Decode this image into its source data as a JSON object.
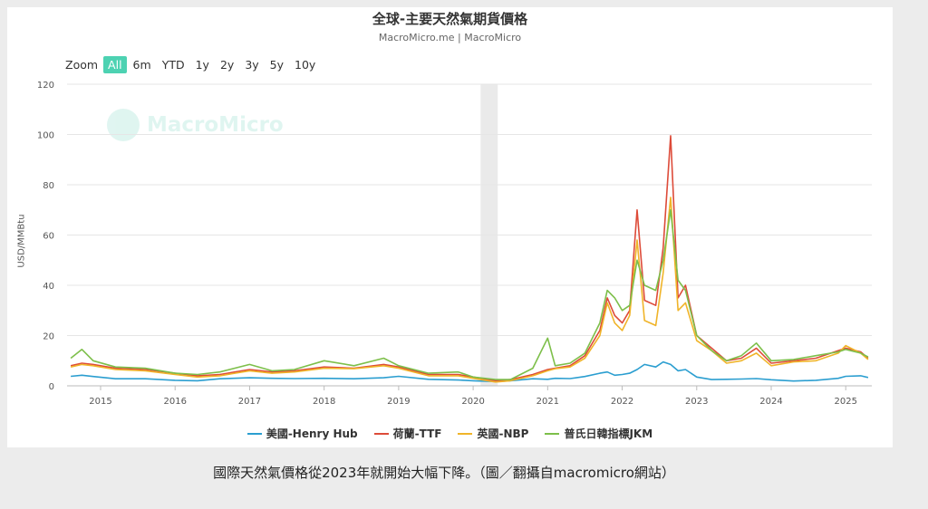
{
  "chart": {
    "title": "全球-主要天然氣期貨價格",
    "subtitle": "MacroMicro.me | MacroMicro",
    "watermark": "MacroMicro",
    "zoom_label": "Zoom",
    "zoom_options": [
      "All",
      "6m",
      "YTD",
      "1y",
      "2y",
      "3y",
      "5y",
      "10y"
    ],
    "zoom_selected": "All"
  },
  "caption": "國際天然氣價格從2023年就開始大幅下降。（圖／翻攝自macromicro網站）",
  "chart_data": {
    "type": "line",
    "ylabel": "USD/MMBtu",
    "ylim": [
      0,
      120
    ],
    "yticks": [
      0,
      20,
      40,
      60,
      80,
      100,
      120
    ],
    "xlim": [
      2014.55,
      2025.35
    ],
    "xticks": [
      "2015",
      "2016",
      "2017",
      "2018",
      "2019",
      "2020",
      "2021",
      "2022",
      "2023",
      "2024",
      "2025"
    ],
    "shaded_band": [
      2020.1,
      2020.33
    ],
    "grid": true,
    "legend_position": "bottom",
    "x": [
      2014.6,
      2014.75,
      2014.9,
      2015.2,
      2015.6,
      2016.0,
      2016.3,
      2016.6,
      2017.0,
      2017.3,
      2017.6,
      2018.0,
      2018.4,
      2018.8,
      2019.0,
      2019.4,
      2019.8,
      2020.0,
      2020.3,
      2020.5,
      2020.8,
      2021.0,
      2021.1,
      2021.3,
      2021.5,
      2021.7,
      2021.8,
      2021.9,
      2022.0,
      2022.1,
      2022.2,
      2022.3,
      2022.45,
      2022.55,
      2022.65,
      2022.75,
      2022.85,
      2023.0,
      2023.2,
      2023.4,
      2023.6,
      2023.8,
      2024.0,
      2024.3,
      2024.6,
      2024.9,
      2025.0,
      2025.2,
      2025.3
    ],
    "series": [
      {
        "name": "美國-Henry Hub",
        "color": "#2b9ed0",
        "values": [
          3.8,
          4.2,
          3.7,
          2.8,
          2.8,
          2.2,
          2.0,
          2.8,
          3.2,
          3.0,
          2.9,
          3.0,
          2.8,
          3.2,
          3.8,
          2.6,
          2.3,
          2.0,
          1.7,
          2.0,
          2.8,
          2.6,
          3.0,
          2.9,
          3.7,
          5.0,
          5.5,
          4.2,
          4.5,
          5.0,
          6.5,
          8.5,
          7.5,
          9.5,
          8.5,
          6.0,
          6.5,
          3.5,
          2.5,
          2.6,
          2.7,
          2.9,
          2.4,
          1.9,
          2.2,
          3.0,
          3.8,
          4.0,
          3.3
        ]
      },
      {
        "name": "荷蘭-TTF",
        "color": "#dd4b39",
        "values": [
          8.0,
          9.0,
          8.5,
          7.0,
          6.5,
          5.0,
          4.0,
          4.5,
          6.5,
          5.5,
          6.0,
          7.5,
          7.0,
          8.5,
          7.5,
          4.5,
          4.5,
          3.5,
          2.0,
          2.5,
          4.5,
          6.5,
          7.0,
          8.0,
          12.0,
          22.0,
          35.0,
          28.0,
          25.0,
          30.0,
          70.0,
          34.0,
          32.0,
          55.0,
          99.5,
          35.0,
          40.0,
          20.0,
          15.0,
          10.0,
          11.0,
          15.0,
          9.0,
          10.0,
          11.0,
          14.0,
          15.0,
          13.5,
          11.0
        ]
      },
      {
        "name": "英國-NBP",
        "color": "#f0b429",
        "values": [
          7.5,
          8.5,
          8.0,
          6.5,
          6.0,
          4.5,
          3.5,
          4.0,
          6.0,
          5.0,
          5.5,
          7.0,
          6.8,
          8.0,
          7.0,
          4.0,
          4.0,
          3.0,
          1.5,
          2.0,
          4.0,
          6.0,
          6.8,
          7.5,
          11.0,
          20.0,
          33.0,
          25.0,
          22.0,
          28.0,
          58.0,
          26.0,
          24.0,
          45.0,
          75.0,
          30.0,
          33.0,
          18.0,
          14.0,
          9.0,
          10.0,
          13.0,
          8.0,
          9.5,
          10.0,
          13.0,
          16.0,
          13.0,
          10.5
        ]
      },
      {
        "name": "普氏日韓指標JKM",
        "color": "#7dbf4a",
        "values": [
          11.0,
          14.5,
          10.0,
          7.5,
          7.0,
          5.0,
          4.5,
          5.5,
          8.5,
          6.0,
          6.5,
          10.0,
          8.0,
          11.0,
          8.0,
          5.0,
          5.5,
          3.5,
          2.5,
          2.5,
          7.0,
          19.0,
          8.0,
          9.0,
          13.0,
          25.0,
          38.0,
          35.0,
          30.0,
          32.0,
          50.0,
          40.0,
          38.0,
          50.0,
          70.0,
          42.0,
          38.0,
          20.0,
          14.0,
          10.0,
          12.0,
          17.0,
          10.0,
          10.5,
          12.0,
          13.5,
          14.5,
          13.0,
          11.5
        ]
      }
    ]
  }
}
